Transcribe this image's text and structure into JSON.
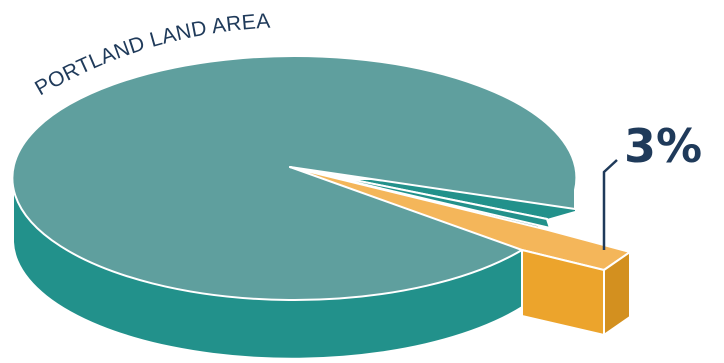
{
  "chart_data": {
    "type": "pie",
    "title": "PORTLAND LAND AREA",
    "slices": [
      {
        "label": "",
        "value": 97
      },
      {
        "label": "3%",
        "value": 3
      }
    ],
    "colors": {
      "main_top": "#5f9f9e",
      "main_side": "#22918b",
      "slice_top": "#f4b65a",
      "slice_front": "#eca42c",
      "slice_side": "#d3901f",
      "title": "#1f3a5a"
    }
  }
}
